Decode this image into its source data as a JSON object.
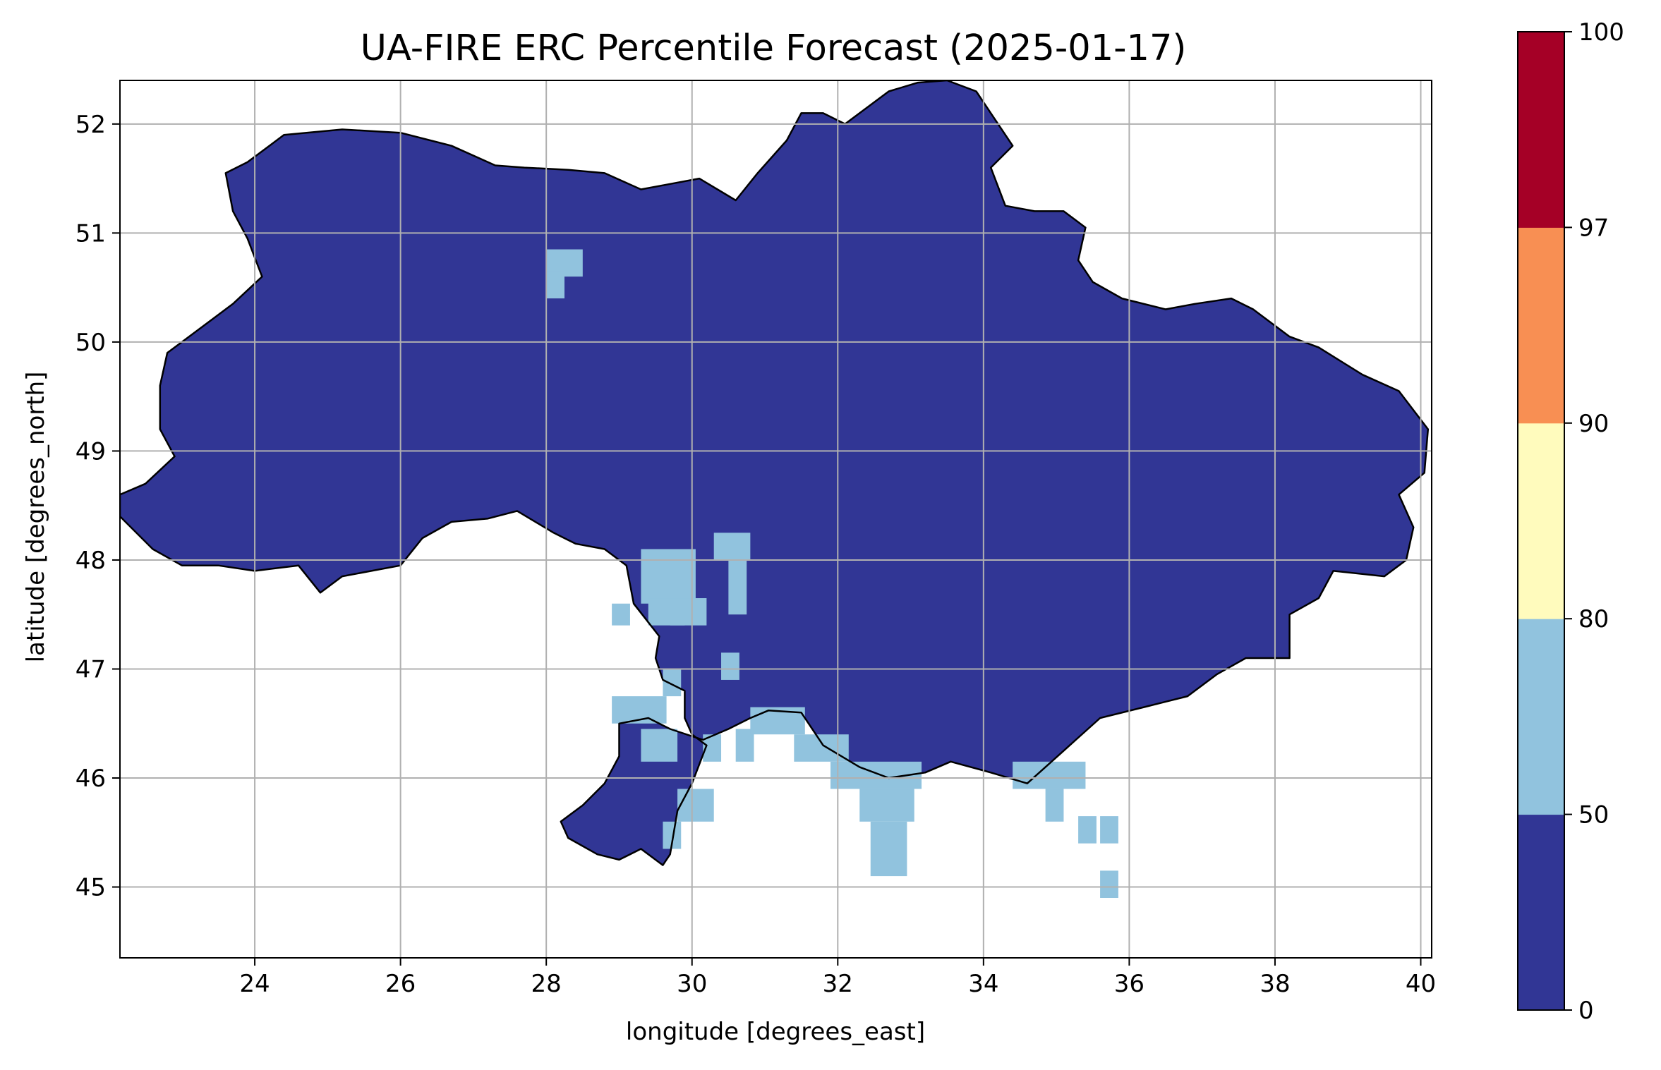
{
  "title": "UA-FIRE ERC Percentile Forecast (2025-01-17)",
  "xlabel": "longitude [degrees_east]",
  "ylabel": "latitude [degrees_north]",
  "x_ticks": [
    {
      "value": 24,
      "label": "24"
    },
    {
      "value": 26,
      "label": "26"
    },
    {
      "value": 28,
      "label": "28"
    },
    {
      "value": 30,
      "label": "30"
    },
    {
      "value": 32,
      "label": "32"
    },
    {
      "value": 34,
      "label": "34"
    },
    {
      "value": 36,
      "label": "36"
    },
    {
      "value": 38,
      "label": "38"
    },
    {
      "value": 40,
      "label": "40"
    }
  ],
  "y_ticks": [
    {
      "value": 45,
      "label": "45"
    },
    {
      "value": 46,
      "label": "46"
    },
    {
      "value": 47,
      "label": "47"
    },
    {
      "value": 48,
      "label": "48"
    },
    {
      "value": 49,
      "label": "49"
    },
    {
      "value": 50,
      "label": "50"
    },
    {
      "value": 51,
      "label": "51"
    },
    {
      "value": 52,
      "label": "52"
    }
  ],
  "xlim": [
    22.15,
    40.15
  ],
  "ylim": [
    44.35,
    52.4
  ],
  "grid": true,
  "colorbar": {
    "labels": [
      "0",
      "50",
      "80",
      "90",
      "97",
      "100"
    ],
    "bins": [
      {
        "from": 0,
        "to": 50,
        "color": "#313695"
      },
      {
        "from": 50,
        "to": 80,
        "color": "#91c3de"
      },
      {
        "from": 80,
        "to": 90,
        "color": "#fffbbd"
      },
      {
        "from": 90,
        "to": 97,
        "color": "#f88f53"
      },
      {
        "from": 97,
        "to": 100,
        "color": "#a50026"
      }
    ]
  },
  "colors": {
    "low": "#313695",
    "moderate": "#91c3de",
    "grid": "#b0b0b0",
    "border": "#000000"
  },
  "chart_data": {
    "type": "heatmap",
    "title": "UA-FIRE ERC Percentile Forecast (2025-01-17)",
    "xlabel": "longitude [degrees_east]",
    "ylabel": "latitude [degrees_north]",
    "xlim": [
      22.15,
      40.15
    ],
    "ylim": [
      44.35,
      52.4
    ],
    "cell_size_deg": 0.25,
    "dominant_class": "0-50",
    "ukraine_outline": [
      [
        22.15,
        48.4
      ],
      [
        22.6,
        48.1
      ],
      [
        23.0,
        47.95
      ],
      [
        23.5,
        47.95
      ],
      [
        24.0,
        47.9
      ],
      [
        24.6,
        47.95
      ],
      [
        24.9,
        47.7
      ],
      [
        25.2,
        47.85
      ],
      [
        26.0,
        47.95
      ],
      [
        26.3,
        48.2
      ],
      [
        26.7,
        48.35
      ],
      [
        27.2,
        48.38
      ],
      [
        27.6,
        48.45
      ],
      [
        28.1,
        48.25
      ],
      [
        28.4,
        48.15
      ],
      [
        28.8,
        48.1
      ],
      [
        29.1,
        47.95
      ],
      [
        29.2,
        47.6
      ],
      [
        29.55,
        47.3
      ],
      [
        29.5,
        47.1
      ],
      [
        29.6,
        46.9
      ],
      [
        29.9,
        46.8
      ],
      [
        29.9,
        46.55
      ],
      [
        30.0,
        46.4
      ],
      [
        30.2,
        46.3
      ],
      [
        30.0,
        45.95
      ],
      [
        29.8,
        45.7
      ],
      [
        29.7,
        45.3
      ],
      [
        29.6,
        45.2
      ],
      [
        29.3,
        45.35
      ],
      [
        29.0,
        45.25
      ],
      [
        28.7,
        45.3
      ],
      [
        28.3,
        45.45
      ],
      [
        28.2,
        45.6
      ],
      [
        28.5,
        45.75
      ],
      [
        28.8,
        45.95
      ],
      [
        29.0,
        46.2
      ],
      [
        29.0,
        46.5
      ],
      [
        29.4,
        46.55
      ],
      [
        29.7,
        46.45
      ],
      [
        30.15,
        46.35
      ],
      [
        30.5,
        46.45
      ],
      [
        30.8,
        46.55
      ],
      [
        31.05,
        46.62
      ],
      [
        31.5,
        46.6
      ],
      [
        31.8,
        46.3
      ],
      [
        32.3,
        46.1
      ],
      [
        32.7,
        46.0
      ],
      [
        33.2,
        46.05
      ],
      [
        33.55,
        46.15
      ],
      [
        34.1,
        46.05
      ],
      [
        34.6,
        45.95
      ],
      [
        35.1,
        46.25
      ],
      [
        35.6,
        46.55
      ],
      [
        36.2,
        46.65
      ],
      [
        36.8,
        46.75
      ],
      [
        37.2,
        46.95
      ],
      [
        37.6,
        47.1
      ],
      [
        38.2,
        47.1
      ],
      [
        38.2,
        47.5
      ],
      [
        38.6,
        47.65
      ],
      [
        38.8,
        47.9
      ],
      [
        39.5,
        47.85
      ],
      [
        39.8,
        48.0
      ],
      [
        39.9,
        48.3
      ],
      [
        39.7,
        48.6
      ],
      [
        40.05,
        48.8
      ],
      [
        40.1,
        49.2
      ],
      [
        39.7,
        49.55
      ],
      [
        39.2,
        49.7
      ],
      [
        38.6,
        49.95
      ],
      [
        38.2,
        50.05
      ],
      [
        37.7,
        50.3
      ],
      [
        37.4,
        50.4
      ],
      [
        36.9,
        50.35
      ],
      [
        36.5,
        50.3
      ],
      [
        35.9,
        50.4
      ],
      [
        35.5,
        50.55
      ],
      [
        35.3,
        50.75
      ],
      [
        35.4,
        51.05
      ],
      [
        35.1,
        51.2
      ],
      [
        34.7,
        51.2
      ],
      [
        34.3,
        51.25
      ],
      [
        34.1,
        51.6
      ],
      [
        34.4,
        51.8
      ],
      [
        34.1,
        52.1
      ],
      [
        33.9,
        52.3
      ],
      [
        33.5,
        52.4
      ],
      [
        33.1,
        52.38
      ],
      [
        32.7,
        52.3
      ],
      [
        32.4,
        52.15
      ],
      [
        32.1,
        52.0
      ],
      [
        31.8,
        52.1
      ],
      [
        31.5,
        52.1
      ],
      [
        31.3,
        51.85
      ],
      [
        30.9,
        51.55
      ],
      [
        30.6,
        51.3
      ],
      [
        30.1,
        51.5
      ],
      [
        29.7,
        51.45
      ],
      [
        29.3,
        51.4
      ],
      [
        28.8,
        51.55
      ],
      [
        28.3,
        51.58
      ],
      [
        27.7,
        51.6
      ],
      [
        27.3,
        51.62
      ],
      [
        26.7,
        51.8
      ],
      [
        26.0,
        51.92
      ],
      [
        25.2,
        51.95
      ],
      [
        24.4,
        51.9
      ],
      [
        23.9,
        51.65
      ],
      [
        23.6,
        51.55
      ],
      [
        23.7,
        51.2
      ],
      [
        23.9,
        50.95
      ],
      [
        24.1,
        50.6
      ],
      [
        23.7,
        50.35
      ],
      [
        23.4,
        50.2
      ],
      [
        22.8,
        49.9
      ],
      [
        22.7,
        49.6
      ],
      [
        22.7,
        49.2
      ],
      [
        22.9,
        48.95
      ],
      [
        22.5,
        48.7
      ],
      [
        22.15,
        48.6
      ]
    ],
    "moderate_50_80_cells": [
      [
        28.0,
        50.6,
        0.5,
        0.25
      ],
      [
        28.0,
        50.4,
        0.25,
        0.25
      ],
      [
        30.3,
        48.0,
        0.5,
        0.25
      ],
      [
        29.3,
        47.6,
        0.75,
        0.5
      ],
      [
        28.9,
        47.4,
        0.25,
        0.2
      ],
      [
        29.4,
        47.4,
        0.5,
        0.25
      ],
      [
        29.7,
        47.4,
        0.5,
        0.25
      ],
      [
        30.5,
        47.5,
        0.25,
        0.5
      ],
      [
        30.4,
        46.9,
        0.25,
        0.25
      ],
      [
        29.6,
        46.75,
        0.25,
        0.25
      ],
      [
        28.9,
        46.5,
        0.75,
        0.25
      ],
      [
        29.3,
        46.15,
        0.5,
        0.3
      ],
      [
        30.15,
        46.15,
        0.25,
        0.25
      ],
      [
        30.6,
        46.15,
        0.25,
        0.3
      ],
      [
        30.8,
        46.4,
        0.75,
        0.25
      ],
      [
        31.4,
        46.15,
        0.75,
        0.25
      ],
      [
        31.9,
        45.9,
        1.25,
        0.25
      ],
      [
        32.3,
        45.6,
        0.75,
        0.3
      ],
      [
        32.45,
        45.1,
        0.5,
        0.5
      ],
      [
        29.8,
        45.6,
        0.5,
        0.3
      ],
      [
        29.6,
        45.35,
        0.25,
        0.25
      ],
      [
        34.4,
        45.9,
        1.0,
        0.25
      ],
      [
        34.85,
        45.6,
        0.25,
        0.3
      ],
      [
        35.3,
        45.4,
        0.25,
        0.25
      ],
      [
        35.6,
        45.4,
        0.25,
        0.25
      ],
      [
        35.6,
        44.9,
        0.25,
        0.25
      ]
    ]
  }
}
